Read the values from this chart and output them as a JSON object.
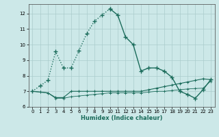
{
  "title": "",
  "xlabel": "Humidex (Indice chaleur)",
  "background_color": "#cce8e8",
  "grid_color": "#aacccc",
  "line_color": "#1a6b5a",
  "xlim": [
    -0.5,
    23.5
  ],
  "ylim": [
    6.0,
    12.6
  ],
  "yticks": [
    6,
    7,
    8,
    9,
    10,
    11,
    12
  ],
  "xticks": [
    0,
    1,
    2,
    3,
    4,
    5,
    6,
    7,
    8,
    9,
    10,
    11,
    12,
    13,
    14,
    15,
    16,
    17,
    18,
    19,
    20,
    21,
    22,
    23
  ],
  "line1_x": [
    0,
    1,
    2,
    3,
    4,
    5,
    6,
    7,
    8,
    9,
    10,
    11,
    12,
    13,
    14,
    15,
    16,
    17,
    18,
    19,
    20,
    21,
    22,
    23
  ],
  "line1_y": [
    7.0,
    7.35,
    7.7,
    9.55,
    8.5,
    8.5,
    9.6,
    10.7,
    11.5,
    11.9,
    12.3,
    11.9,
    10.5,
    10.0,
    8.3,
    8.5,
    8.5,
    8.3,
    7.9,
    7.0,
    6.8,
    6.55,
    7.1,
    7.75
  ],
  "line2_x": [
    0,
    1,
    2,
    3,
    4,
    5,
    6,
    7,
    8,
    9,
    10,
    11,
    12,
    13,
    14,
    15,
    16,
    17,
    18,
    19,
    20,
    21,
    22,
    23
  ],
  "line2_y": [
    7.0,
    6.95,
    6.9,
    6.6,
    6.6,
    7.0,
    7.0,
    7.0,
    7.0,
    7.0,
    7.0,
    7.0,
    7.0,
    7.0,
    7.0,
    7.1,
    7.2,
    7.3,
    7.4,
    7.5,
    7.6,
    7.7,
    7.8,
    7.75
  ],
  "line3_x": [
    0,
    1,
    2,
    3,
    4,
    5,
    6,
    7,
    8,
    9,
    10,
    11,
    12,
    13,
    14,
    15,
    16,
    17,
    18,
    19,
    20,
    21,
    22,
    23
  ],
  "line3_y": [
    7.0,
    6.95,
    6.9,
    6.55,
    6.55,
    6.65,
    6.7,
    6.75,
    6.8,
    6.85,
    6.9,
    6.9,
    6.9,
    6.9,
    6.9,
    6.95,
    7.0,
    7.0,
    7.05,
    7.1,
    7.15,
    7.18,
    7.2,
    7.65
  ]
}
